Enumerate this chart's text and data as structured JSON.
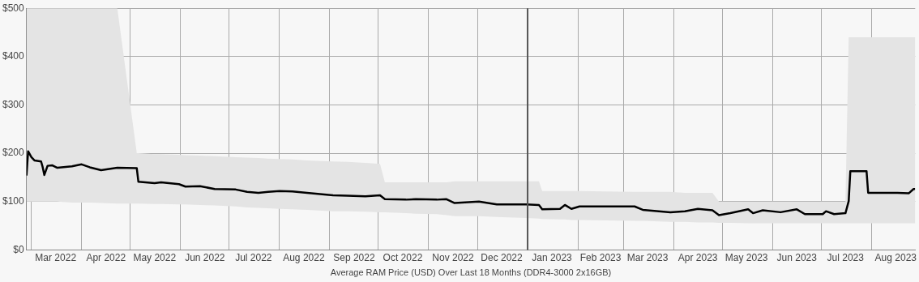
{
  "chart_data": {
    "type": "line",
    "xlabel": "Average RAM Price (USD) Over Last 18 Months (DDR4-3000 2x16GB)",
    "x": [
      "2022-02-26",
      "2022-02-27",
      "2022-03-01",
      "2022-03-03",
      "2022-03-07",
      "2022-03-08",
      "2022-03-09",
      "2022-03-11",
      "2022-03-14",
      "2022-03-17",
      "2022-03-26",
      "2022-04-01",
      "2022-04-06",
      "2022-04-13",
      "2022-04-23",
      "2022-05-05",
      "2022-05-06",
      "2022-05-16",
      "2022-05-20",
      "2022-05-31",
      "2022-06-04",
      "2022-06-13",
      "2022-06-22",
      "2022-07-05",
      "2022-07-12",
      "2022-07-19",
      "2022-07-25",
      "2022-08-01",
      "2022-08-09",
      "2022-08-18",
      "2022-09-03",
      "2022-09-12",
      "2022-09-23",
      "2022-10-02",
      "2022-10-05",
      "2022-10-18",
      "2022-10-24",
      "2022-11-06",
      "2022-11-12",
      "2022-11-17",
      "2022-12-02",
      "2022-12-13",
      "2022-12-31",
      "2023-01-08",
      "2023-01-10",
      "2023-01-21",
      "2023-01-24",
      "2023-01-28",
      "2023-02-02",
      "2023-03-08",
      "2023-03-13",
      "2023-03-30",
      "2023-04-08",
      "2023-04-16",
      "2023-04-25",
      "2023-04-29",
      "2023-05-06",
      "2023-05-17",
      "2023-05-20",
      "2023-05-26",
      "2023-06-06",
      "2023-06-16",
      "2023-06-21",
      "2023-07-02",
      "2023-07-04",
      "2023-07-09",
      "2023-07-16",
      "2023-07-18",
      "2023-07-19",
      "2023-07-29",
      "2023-07-30",
      "2023-08-17",
      "2023-08-24",
      "2023-08-27",
      "2023-08-28"
    ],
    "series": [
      {
        "color": "#000000",
        "values": [
          154,
          204,
          192,
          185,
          183,
          171,
          155,
          174,
          175,
          170,
          173,
          177,
          171,
          165,
          170,
          169,
          141,
          138,
          140,
          136,
          131,
          132,
          126,
          125,
          120,
          118,
          120,
          122,
          121,
          118,
          113,
          112,
          111,
          113,
          105,
          104,
          105,
          104,
          105,
          97,
          100,
          94,
          94,
          93,
          84,
          85,
          93,
          85,
          90,
          90,
          83,
          78,
          80,
          85,
          82,
          72,
          76,
          84,
          76,
          82,
          78,
          84,
          74,
          74,
          80,
          74,
          76,
          101,
          163,
          163,
          118,
          118,
          117,
          126,
          126
        ],
        "lower": [
          100,
          100,
          100,
          100,
          100,
          100,
          100,
          100,
          100,
          100,
          98,
          98,
          98,
          97,
          96,
          96,
          96,
          95,
          95,
          94,
          94,
          93,
          92,
          90,
          88,
          87,
          86,
          85,
          84,
          83,
          80,
          80,
          79,
          78,
          78,
          76,
          75,
          74,
          72,
          70,
          70,
          68,
          66,
          65,
          64,
          63,
          63,
          62,
          62,
          60,
          60,
          58,
          58,
          57,
          57,
          56,
          56,
          55,
          55,
          55,
          55,
          55,
          55,
          55,
          55,
          55,
          55,
          55,
          55,
          55,
          55,
          55,
          55,
          55,
          55
        ],
        "upper": [
          500,
          500,
          500,
          500,
          500,
          500,
          500,
          500,
          500,
          500,
          500,
          500,
          500,
          500,
          500,
          200,
          200,
          198,
          198,
          197,
          196,
          195,
          194,
          192,
          191,
          190,
          189,
          188,
          187,
          185,
          183,
          182,
          180,
          178,
          140,
          140,
          140,
          140,
          140,
          142,
          142,
          142,
          142,
          142,
          122,
          122,
          122,
          122,
          122,
          120,
          120,
          120,
          118,
          118,
          118,
          100,
          100,
          100,
          100,
          100,
          100,
          100,
          100,
          100,
          100,
          100,
          100,
          440,
          440,
          440,
          440,
          440,
          440,
          440,
          440
        ]
      }
    ],
    "xlim": [
      "2022-02-26",
      "2023-08-28"
    ],
    "xticks": [
      {
        "value": "2022-03-01",
        "label": null
      },
      {
        "value": "2022-03-16",
        "label": "Mar 2022"
      },
      {
        "value": "2022-04-01",
        "label": null
      },
      {
        "value": "2022-04-16",
        "label": "Apr 2022"
      },
      {
        "value": "2022-05-01",
        "label": null
      },
      {
        "value": "2022-05-16",
        "label": "May 2022"
      },
      {
        "value": "2022-06-01",
        "label": null
      },
      {
        "value": "2022-06-16",
        "label": "Jun 2022"
      },
      {
        "value": "2022-07-01",
        "label": null
      },
      {
        "value": "2022-07-16",
        "label": "Jul 2022"
      },
      {
        "value": "2022-08-01",
        "label": null
      },
      {
        "value": "2022-08-16",
        "label": "Aug 2022"
      },
      {
        "value": "2022-09-01",
        "label": null
      },
      {
        "value": "2022-09-16",
        "label": "Sep 2022"
      },
      {
        "value": "2022-10-01",
        "label": null
      },
      {
        "value": "2022-10-16",
        "label": "Oct 2022"
      },
      {
        "value": "2022-11-01",
        "label": null
      },
      {
        "value": "2022-11-16",
        "label": "Nov 2022"
      },
      {
        "value": "2022-12-01",
        "label": null
      },
      {
        "value": "2022-12-16",
        "label": "Dec 2022"
      },
      {
        "value": "2023-01-01",
        "label": null
      },
      {
        "value": "2023-01-16",
        "label": "Jan 2023"
      },
      {
        "value": "2023-02-01",
        "label": null
      },
      {
        "value": "2023-02-15",
        "label": "Feb 2023"
      },
      {
        "value": "2023-03-01",
        "label": null
      },
      {
        "value": "2023-03-16",
        "label": "Mar 2023"
      },
      {
        "value": "2023-04-01",
        "label": null
      },
      {
        "value": "2023-04-16",
        "label": "Apr 2023"
      },
      {
        "value": "2023-05-01",
        "label": null
      },
      {
        "value": "2023-05-16",
        "label": "May 2023"
      },
      {
        "value": "2023-06-01",
        "label": null
      },
      {
        "value": "2023-06-16",
        "label": "Jun 2023"
      },
      {
        "value": "2023-07-01",
        "label": null
      },
      {
        "value": "2023-07-16",
        "label": "Jul 2023"
      },
      {
        "value": "2023-08-01",
        "label": null
      },
      {
        "value": "2023-08-16",
        "label": "Aug 2023"
      }
    ],
    "ylim": [
      0,
      500
    ],
    "yticks": [
      {
        "value": 0,
        "label": "$0"
      },
      {
        "value": 100,
        "label": "$100"
      },
      {
        "value": 200,
        "label": "$200"
      },
      {
        "value": 300,
        "label": "$300"
      },
      {
        "value": 400,
        "label": "$400"
      },
      {
        "value": 500,
        "label": "$500"
      }
    ],
    "ref_lines": [
      {
        "axis": "x",
        "value": "2023-01-01",
        "color": "#555555"
      }
    ],
    "grid": true,
    "legend": false,
    "marker": "none",
    "line_style": "solid"
  }
}
